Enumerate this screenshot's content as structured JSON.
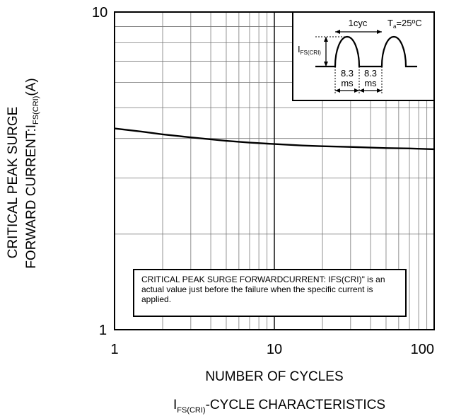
{
  "chart_data": {
    "type": "line",
    "xscale": "log",
    "yscale": "log",
    "xlim": [
      1,
      100
    ],
    "ylim": [
      1,
      10
    ],
    "xticks": [
      "1",
      "10",
      "100"
    ],
    "yticks": [
      "1",
      "10"
    ],
    "grid": true,
    "xlabel": "NUMBER OF CYCLES",
    "ylabel_line1": "CRITICAL PEAK SURGE",
    "ylabel_line2_main": "FORWARD CURRENT:I",
    "ylabel_line2_sub": "FS(CRI)",
    "ylabel_line2_unit": "(A)",
    "caption_main": "I",
    "caption_sub": "FS(CRI)",
    "caption_rest": "-CYCLE CHARACTERISTICS",
    "series": [
      {
        "x": [
          1,
          1.5,
          2,
          3,
          5,
          7,
          10,
          15,
          20,
          30,
          50,
          70,
          100
        ],
        "y": [
          4.3,
          4.2,
          4.12,
          4.03,
          3.93,
          3.88,
          3.84,
          3.8,
          3.78,
          3.76,
          3.73,
          3.72,
          3.7
        ]
      }
    ],
    "inset": {
      "period_label": "1cyc",
      "temp_main": "T",
      "temp_sub": "a",
      "temp_rest": "=25ºC",
      "current_main": "I",
      "current_sub": "FS(CRI)",
      "time1_top": "8.3",
      "time1_bottom": "ms",
      "time2_top": "8.3",
      "time2_bottom": "ms"
    },
    "note": "CRITICAL PEAK SURGE FORWARDCURRENT: IFS(CRI)\" is an actual value just before the failure when the specific current is applied."
  }
}
